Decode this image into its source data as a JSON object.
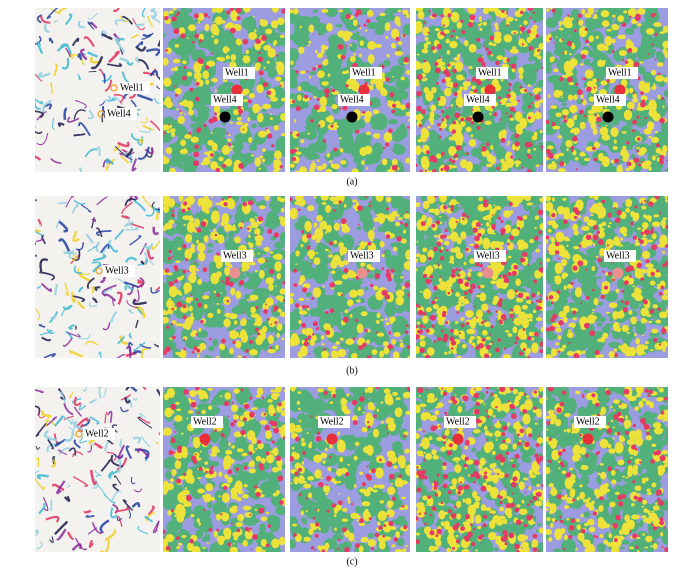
{
  "rows": [
    {
      "caption": "(a)",
      "panels": [
        [
          "Well1",
          "Well4"
        ],
        [
          "Well1",
          "Well4"
        ],
        [
          "Well1",
          "Well4"
        ],
        [
          "Well1",
          "Well4"
        ],
        [
          "Well1",
          "Well4"
        ]
      ]
    },
    {
      "caption": "(b)",
      "panels": [
        [
          "Well3"
        ],
        [
          "Well3"
        ],
        [
          "Well3"
        ],
        [
          "Well3"
        ],
        [
          "Well3"
        ]
      ]
    },
    {
      "caption": "(c)",
      "panels": [
        [
          "Well2"
        ],
        [
          "Well2"
        ],
        [
          "Well2"
        ],
        [
          "Well2"
        ],
        [
          "Well2"
        ]
      ]
    }
  ]
}
